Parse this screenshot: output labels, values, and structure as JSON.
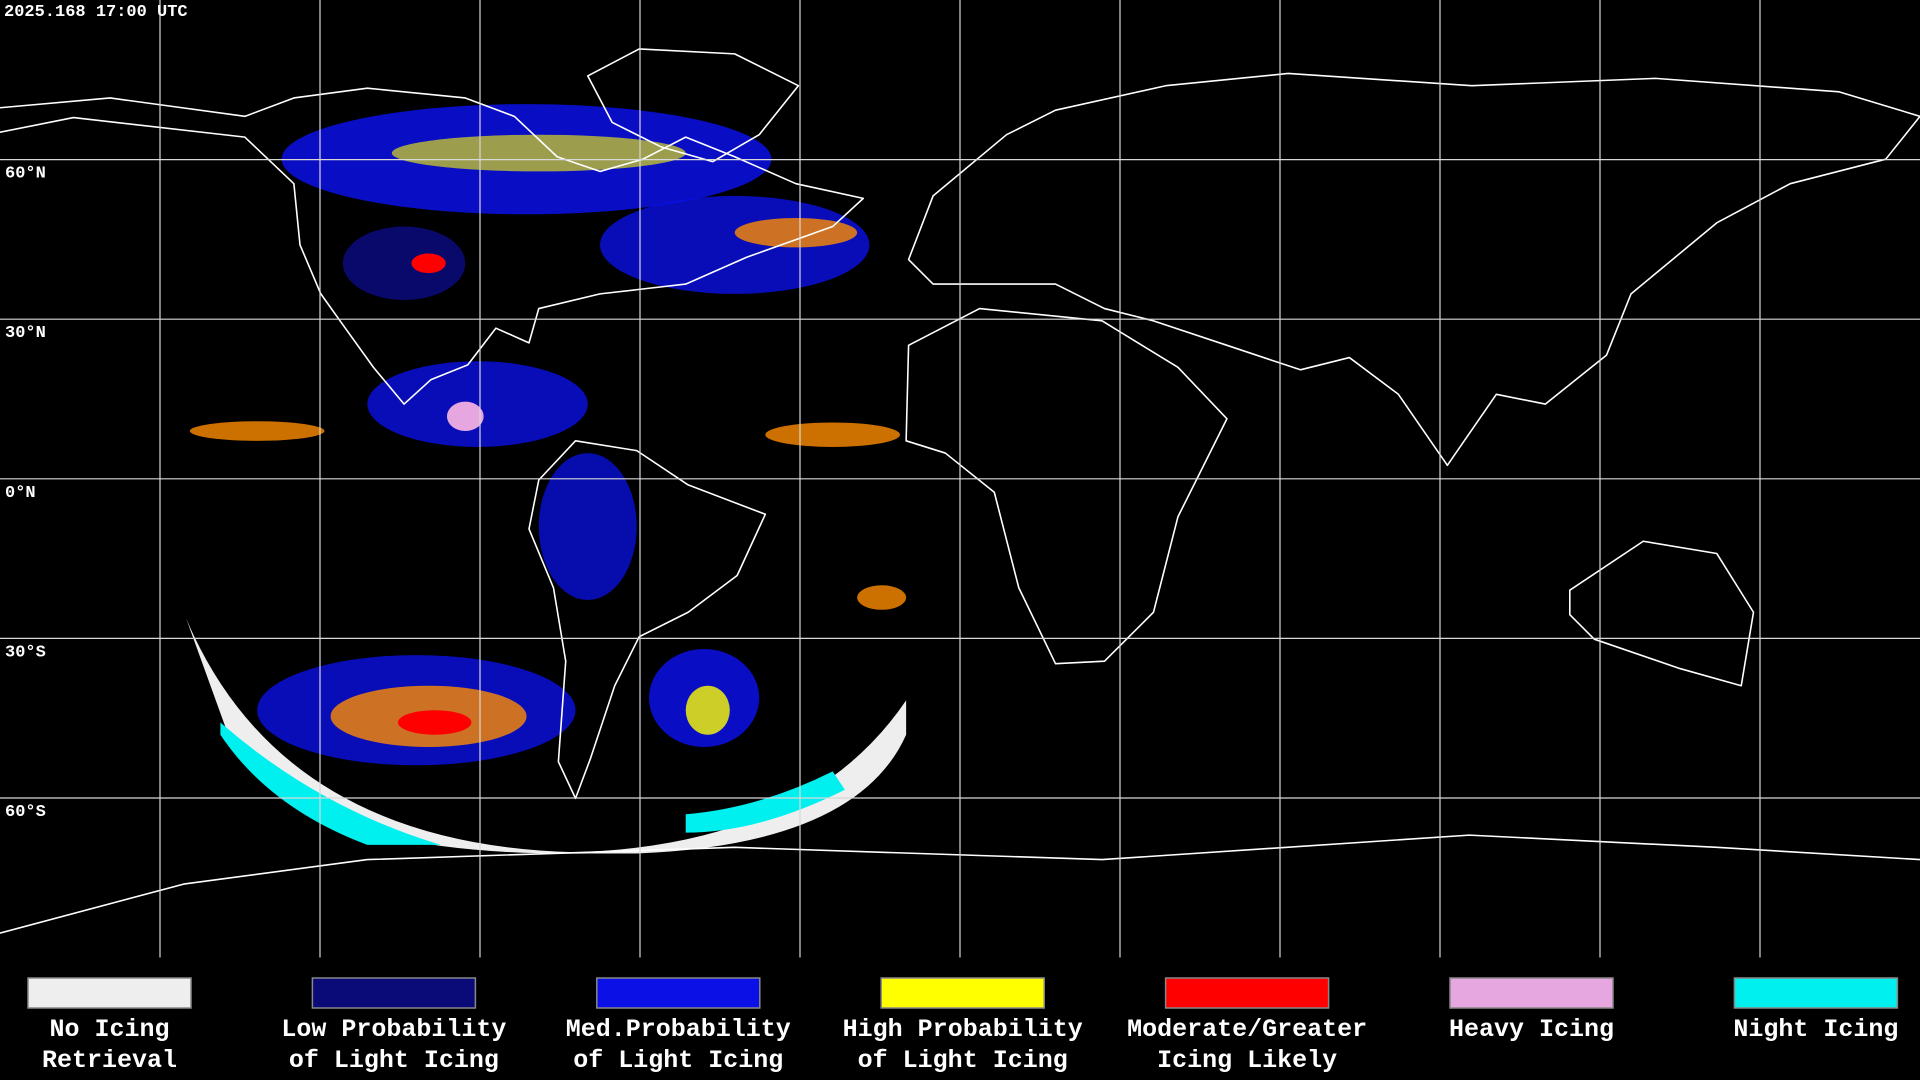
{
  "header": {
    "timestamp": "2025.168 17:00 UTC"
  },
  "lat_labels": [
    "60°N",
    "30°N",
    "0°N",
    "30°S",
    "60°S"
  ],
  "legend": [
    {
      "lines": [
        "No Icing",
        "Retrieval"
      ],
      "color": "#eeeeee"
    },
    {
      "lines": [
        "Low Probability",
        "of Light Icing"
      ],
      "color": "#0a0a78"
    },
    {
      "lines": [
        "Med.Probability",
        "of Light Icing"
      ],
      "color": "#0a10e6"
    },
    {
      "lines": [
        "High Probability",
        "of Light Icing"
      ],
      "color": "#ffff00"
    },
    {
      "lines": [
        "Moderate/Greater",
        "Icing Likely"
      ],
      "color": "#ff0000"
    },
    {
      "lines": [
        "Heavy Icing"
      ],
      "color": "#e6a6e0"
    },
    {
      "lines": [
        "Night Icing"
      ],
      "color": "#00f0f0"
    }
  ]
}
